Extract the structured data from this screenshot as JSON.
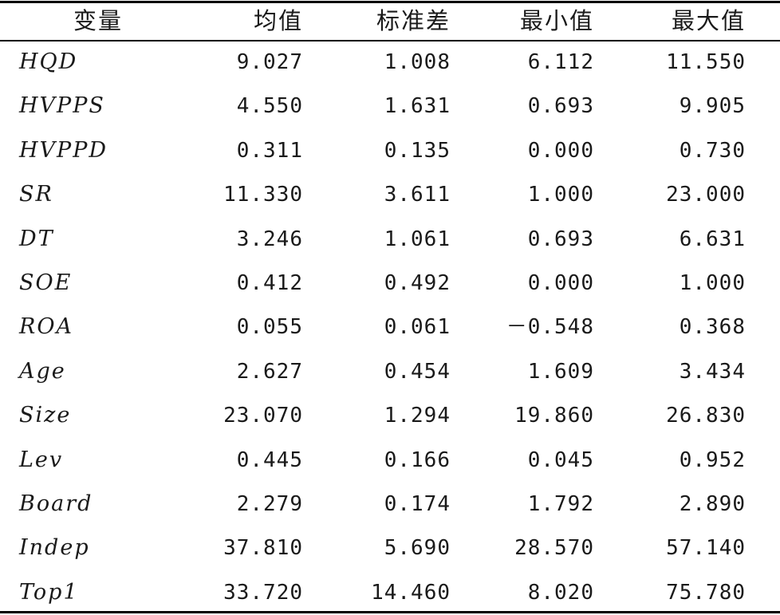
{
  "table": {
    "headers": [
      "变量",
      "均值",
      "标准差",
      "最小值",
      "最大值"
    ],
    "rows": [
      {
        "variable": "HQD",
        "mean": "9.027",
        "sd": "1.008",
        "min": "6.112",
        "max": "11.550"
      },
      {
        "variable": "HVPPS",
        "mean": "4.550",
        "sd": "1.631",
        "min": "0.693",
        "max": "9.905"
      },
      {
        "variable": "HVPPD",
        "mean": "0.311",
        "sd": "0.135",
        "min": "0.000",
        "max": "0.730"
      },
      {
        "variable": "SR",
        "mean": "11.330",
        "sd": "3.611",
        "min": "1.000",
        "max": "23.000"
      },
      {
        "variable": "DT",
        "mean": "3.246",
        "sd": "1.061",
        "min": "0.693",
        "max": "6.631"
      },
      {
        "variable": "SOE",
        "mean": "0.412",
        "sd": "0.492",
        "min": "0.000",
        "max": "1.000"
      },
      {
        "variable": "ROA",
        "mean": "0.055",
        "sd": "0.061",
        "min": "－0.548",
        "max": "0.368"
      },
      {
        "variable": "Age",
        "mean": "2.627",
        "sd": "0.454",
        "min": "1.609",
        "max": "3.434"
      },
      {
        "variable": "Size",
        "mean": "23.070",
        "sd": "1.294",
        "min": "19.860",
        "max": "26.830"
      },
      {
        "variable": "Lev",
        "mean": "0.445",
        "sd": "0.166",
        "min": "0.045",
        "max": "0.952"
      },
      {
        "variable": "Board",
        "mean": "2.279",
        "sd": "0.174",
        "min": "1.792",
        "max": "2.890"
      },
      {
        "variable": "Indep",
        "mean": "37.810",
        "sd": "5.690",
        "min": "28.570",
        "max": "57.140"
      },
      {
        "variable": "Top1",
        "mean": "33.720",
        "sd": "14.460",
        "min": "8.020",
        "max": "75.780"
      }
    ]
  }
}
